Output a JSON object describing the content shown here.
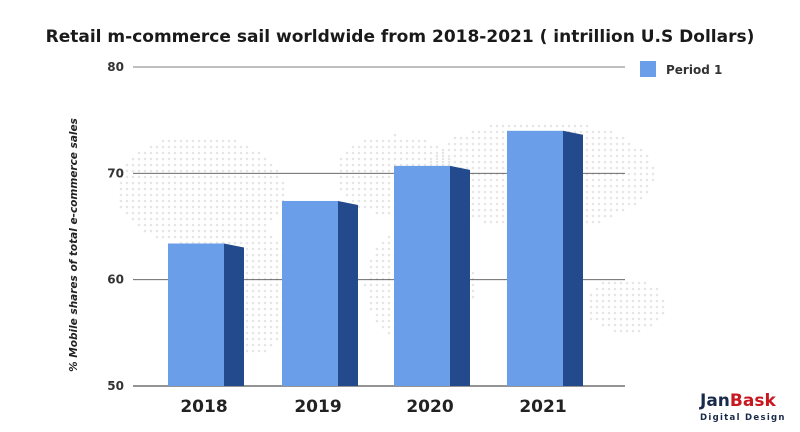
{
  "chart_data": {
    "type": "bar",
    "title": "Retail m-commerce sail worldwide from 2018-2021 ( intrillion U.S Dollars)",
    "ylabel": "% Mobile shares of total e-commerce sales",
    "xlabel": "",
    "categories": [
      "2018",
      "2019",
      "2020",
      "2021"
    ],
    "series": [
      {
        "name": "Period 1",
        "values": [
          63.4,
          67.4,
          70.7,
          74.0
        ]
      }
    ],
    "ylim": [
      50,
      80
    ],
    "yticks": [
      50,
      60,
      70,
      80
    ],
    "grid": true,
    "legend": "top-right",
    "colors": {
      "bar_front": "#6b9ee8",
      "bar_side": "#234a8c",
      "grid": "#555555"
    }
  },
  "brand": {
    "name_part1": "Jan",
    "name_part2": "Bask",
    "tagline": "Digital Design",
    "colors": {
      "part1": "#1a2a4a",
      "part2": "#c8171e"
    }
  }
}
